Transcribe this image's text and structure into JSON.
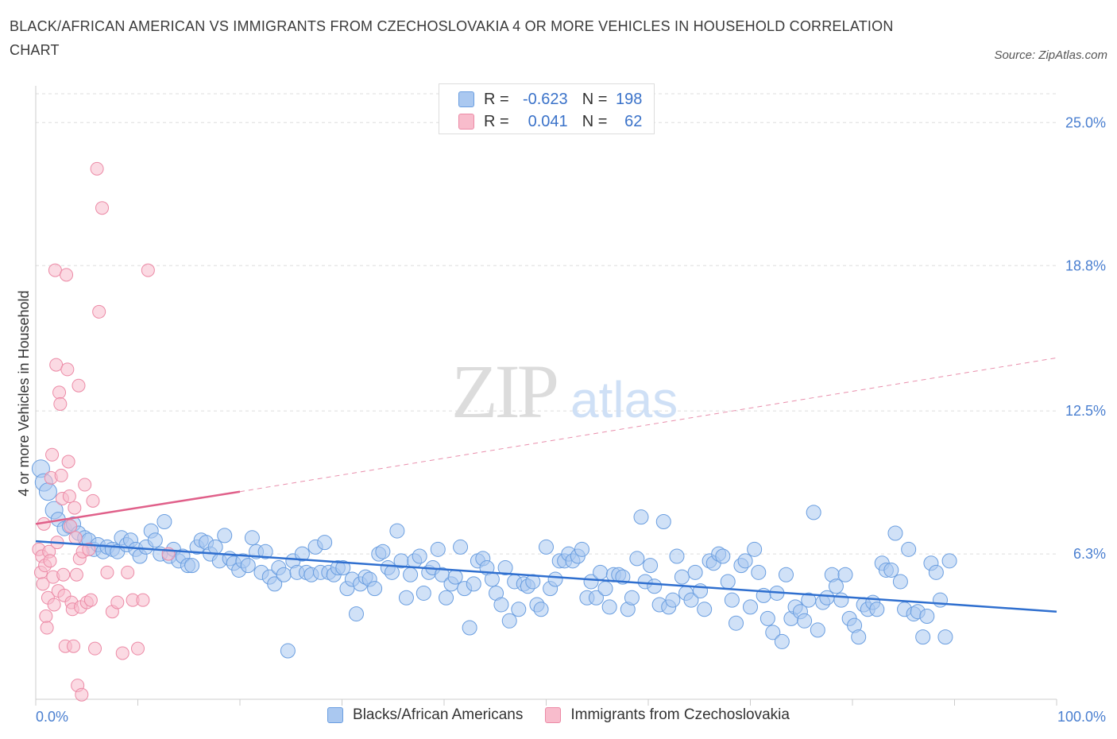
{
  "title": "BLACK/AFRICAN AMERICAN VS IMMIGRANTS FROM CZECHOSLOVAKIA 4 OR MORE VEHICLES IN HOUSEHOLD CORRELATION CHART",
  "source": "Source: ZipAtlas.com",
  "watermark": {
    "zip": "ZIP",
    "atlas": "atlas"
  },
  "legend": {
    "r_label": "R =",
    "n_label": "N =",
    "rows": [
      {
        "r": "-0.623",
        "n": "198"
      },
      {
        "r": "0.041",
        "n": "62"
      }
    ]
  },
  "colors": {
    "blue_fill": "#aac8f0",
    "blue_stroke": "#6a9ee0",
    "blue_line": "#2f6fcf",
    "pink_fill": "#f8bccc",
    "pink_stroke": "#ec8aa6",
    "pink_line": "#e0608a",
    "axis_text": "#4a7fd0",
    "grid": "#dddddd"
  },
  "chart_data": {
    "type": "scatter",
    "title": "BLACK/AFRICAN AMERICAN VS IMMIGRANTS FROM CZECHOSLOVAKIA 4 OR MORE VEHICLES IN HOUSEHOLD CORRELATION CHART",
    "xlabel": "",
    "ylabel": "4 or more Vehicles in Household",
    "xlim": [
      0,
      100
    ],
    "ylim": [
      0,
      26.25
    ],
    "x_tick_labels": [
      "0.0%",
      "100.0%"
    ],
    "y_ticks": [
      6.3,
      12.5,
      18.8,
      25.0
    ],
    "y_tick_labels": [
      "6.3%",
      "12.5%",
      "18.8%",
      "25.0%"
    ],
    "grid": true,
    "legend_position": "top-center",
    "series": [
      {
        "name": "Blacks/African Americans",
        "color": "#aac8f0",
        "trend": {
          "x": [
            0,
            100
          ],
          "y": [
            6.85,
            3.8
          ]
        },
        "points": [
          [
            0.5,
            10.0
          ],
          [
            0.8,
            9.4
          ],
          [
            1.2,
            9.0
          ],
          [
            1.8,
            8.2
          ],
          [
            2.2,
            7.8
          ],
          [
            2.8,
            7.4
          ],
          [
            3.3,
            7.5
          ],
          [
            3.7,
            7.6
          ],
          [
            4.2,
            7.2
          ],
          [
            4.8,
            7.0
          ],
          [
            5.2,
            6.9
          ],
          [
            5.7,
            6.5
          ],
          [
            6.1,
            6.7
          ],
          [
            6.6,
            6.4
          ],
          [
            7.0,
            6.6
          ],
          [
            7.5,
            6.5
          ],
          [
            8.0,
            6.4
          ],
          [
            8.4,
            7.0
          ],
          [
            8.9,
            6.7
          ],
          [
            9.3,
            6.9
          ],
          [
            9.8,
            6.5
          ],
          [
            10.2,
            6.2
          ],
          [
            10.8,
            6.6
          ],
          [
            11.3,
            7.3
          ],
          [
            11.7,
            6.9
          ],
          [
            12.2,
            6.3
          ],
          [
            12.6,
            7.7
          ],
          [
            13.1,
            6.2
          ],
          [
            13.5,
            6.5
          ],
          [
            14.0,
            6.0
          ],
          [
            14.4,
            6.2
          ],
          [
            14.9,
            5.8
          ],
          [
            15.3,
            5.8
          ],
          [
            15.8,
            6.6
          ],
          [
            16.2,
            6.9
          ],
          [
            16.7,
            6.8
          ],
          [
            17.1,
            6.3
          ],
          [
            17.6,
            6.6
          ],
          [
            18.0,
            6.0
          ],
          [
            18.5,
            7.1
          ],
          [
            19.0,
            6.1
          ],
          [
            19.4,
            5.9
          ],
          [
            19.9,
            5.6
          ],
          [
            20.3,
            6.0
          ],
          [
            20.8,
            5.8
          ],
          [
            21.2,
            7.0
          ],
          [
            21.6,
            6.4
          ],
          [
            22.1,
            5.5
          ],
          [
            22.5,
            6.4
          ],
          [
            22.9,
            5.3
          ],
          [
            23.4,
            5.0
          ],
          [
            23.8,
            5.7
          ],
          [
            24.3,
            5.4
          ],
          [
            24.7,
            2.1
          ],
          [
            25.2,
            6.0
          ],
          [
            25.6,
            5.5
          ],
          [
            26.1,
            6.3
          ],
          [
            26.5,
            5.5
          ],
          [
            27.0,
            5.4
          ],
          [
            27.4,
            6.6
          ],
          [
            27.9,
            5.5
          ],
          [
            28.3,
            6.8
          ],
          [
            28.7,
            5.5
          ],
          [
            29.2,
            5.4
          ],
          [
            29.6,
            5.7
          ],
          [
            30.1,
            5.7
          ],
          [
            30.5,
            4.8
          ],
          [
            31.0,
            5.2
          ],
          [
            31.4,
            3.7
          ],
          [
            31.8,
            5.0
          ],
          [
            32.3,
            5.3
          ],
          [
            32.7,
            5.2
          ],
          [
            33.2,
            4.8
          ],
          [
            33.6,
            6.3
          ],
          [
            34.0,
            6.4
          ],
          [
            34.5,
            5.7
          ],
          [
            34.9,
            5.5
          ],
          [
            35.4,
            7.3
          ],
          [
            35.8,
            6.0
          ],
          [
            36.3,
            4.4
          ],
          [
            36.7,
            5.4
          ],
          [
            37.1,
            6.0
          ],
          [
            37.6,
            6.2
          ],
          [
            38.0,
            4.6
          ],
          [
            38.5,
            5.5
          ],
          [
            38.9,
            5.7
          ],
          [
            39.4,
            6.5
          ],
          [
            39.8,
            5.4
          ],
          [
            40.2,
            4.4
          ],
          [
            40.7,
            5.0
          ],
          [
            41.1,
            5.3
          ],
          [
            41.6,
            6.6
          ],
          [
            42.0,
            4.8
          ],
          [
            42.5,
            3.1
          ],
          [
            42.9,
            5.0
          ],
          [
            43.3,
            6.0
          ],
          [
            43.8,
            6.1
          ],
          [
            44.2,
            5.7
          ],
          [
            44.7,
            5.2
          ],
          [
            45.1,
            4.6
          ],
          [
            45.6,
            4.1
          ],
          [
            46.0,
            5.7
          ],
          [
            46.4,
            3.4
          ],
          [
            46.9,
            5.1
          ],
          [
            47.3,
            3.9
          ],
          [
            47.8,
            5.0
          ],
          [
            48.2,
            4.9
          ],
          [
            48.7,
            5.1
          ],
          [
            49.1,
            4.1
          ],
          [
            49.5,
            3.9
          ],
          [
            50.0,
            6.6
          ],
          [
            50.4,
            4.8
          ],
          [
            50.9,
            5.2
          ],
          [
            51.3,
            6.0
          ],
          [
            51.8,
            6.0
          ],
          [
            52.2,
            6.3
          ],
          [
            52.6,
            6.0
          ],
          [
            53.1,
            6.2
          ],
          [
            53.5,
            6.5
          ],
          [
            54.0,
            4.4
          ],
          [
            54.4,
            5.1
          ],
          [
            54.9,
            4.4
          ],
          [
            55.3,
            5.5
          ],
          [
            55.8,
            4.8
          ],
          [
            56.2,
            4.0
          ],
          [
            56.6,
            5.4
          ],
          [
            57.1,
            5.4
          ],
          [
            57.5,
            5.3
          ],
          [
            58.0,
            3.9
          ],
          [
            58.4,
            4.4
          ],
          [
            58.9,
            6.1
          ],
          [
            59.3,
            7.9
          ],
          [
            59.7,
            5.1
          ],
          [
            60.2,
            5.8
          ],
          [
            60.6,
            4.9
          ],
          [
            61.1,
            4.1
          ],
          [
            61.5,
            7.7
          ],
          [
            62.0,
            4.0
          ],
          [
            62.4,
            4.3
          ],
          [
            62.8,
            6.2
          ],
          [
            63.3,
            5.3
          ],
          [
            63.7,
            4.6
          ],
          [
            64.2,
            4.3
          ],
          [
            64.6,
            5.5
          ],
          [
            65.1,
            4.7
          ],
          [
            65.5,
            3.9
          ],
          [
            66.0,
            6.0
          ],
          [
            66.4,
            5.9
          ],
          [
            66.9,
            6.3
          ],
          [
            67.3,
            6.2
          ],
          [
            67.8,
            5.1
          ],
          [
            68.2,
            4.3
          ],
          [
            68.6,
            3.3
          ],
          [
            69.1,
            5.8
          ],
          [
            69.5,
            6.0
          ],
          [
            70.0,
            4.0
          ],
          [
            70.4,
            6.5
          ],
          [
            70.8,
            5.5
          ],
          [
            71.3,
            4.5
          ],
          [
            71.7,
            3.5
          ],
          [
            72.2,
            2.9
          ],
          [
            72.6,
            4.6
          ],
          [
            73.1,
            2.5
          ],
          [
            73.5,
            5.4
          ],
          [
            74.0,
            3.5
          ],
          [
            74.4,
            4.0
          ],
          [
            74.9,
            3.8
          ],
          [
            75.3,
            3.4
          ],
          [
            75.7,
            4.3
          ],
          [
            76.2,
            8.1
          ],
          [
            76.6,
            3.0
          ],
          [
            77.1,
            4.2
          ],
          [
            77.5,
            4.4
          ],
          [
            78.0,
            5.4
          ],
          [
            78.4,
            4.9
          ],
          [
            78.9,
            4.3
          ],
          [
            79.3,
            5.4
          ],
          [
            79.7,
            3.5
          ],
          [
            80.2,
            3.2
          ],
          [
            80.6,
            2.7
          ],
          [
            81.1,
            4.1
          ],
          [
            81.5,
            3.9
          ],
          [
            82.0,
            4.2
          ],
          [
            82.4,
            3.9
          ],
          [
            82.9,
            5.9
          ],
          [
            83.3,
            5.6
          ],
          [
            83.8,
            5.6
          ],
          [
            84.2,
            7.2
          ],
          [
            84.7,
            5.1
          ],
          [
            85.1,
            3.9
          ],
          [
            85.5,
            6.5
          ],
          [
            86.0,
            3.7
          ],
          [
            86.4,
            3.8
          ],
          [
            86.9,
            2.7
          ],
          [
            87.3,
            3.6
          ],
          [
            87.7,
            5.9
          ],
          [
            88.2,
            5.5
          ],
          [
            88.6,
            4.3
          ],
          [
            89.1,
            2.7
          ],
          [
            89.5,
            6.0
          ]
        ]
      },
      {
        "name": "Immigrants from Czechoslovakia",
        "color": "#f8bccc",
        "trend": {
          "x": [
            0,
            20
          ],
          "y": [
            7.6,
            9.0
          ],
          "dashed_to": {
            "x": 100,
            "y": 14.8
          }
        },
        "points": [
          [
            0.3,
            6.5
          ],
          [
            0.5,
            5.5
          ],
          [
            0.6,
            6.2
          ],
          [
            0.7,
            5.0
          ],
          [
            0.8,
            7.6
          ],
          [
            0.9,
            5.8
          ],
          [
            1.0,
            3.6
          ],
          [
            1.1,
            3.1
          ],
          [
            1.2,
            4.4
          ],
          [
            1.3,
            6.4
          ],
          [
            1.4,
            6.0
          ],
          [
            1.5,
            9.6
          ],
          [
            1.6,
            10.6
          ],
          [
            1.7,
            5.3
          ],
          [
            1.8,
            4.1
          ],
          [
            1.9,
            18.6
          ],
          [
            2.0,
            14.5
          ],
          [
            2.1,
            6.8
          ],
          [
            2.2,
            4.7
          ],
          [
            2.3,
            13.3
          ],
          [
            2.4,
            12.8
          ],
          [
            2.5,
            9.7
          ],
          [
            2.6,
            8.7
          ],
          [
            2.7,
            5.4
          ],
          [
            2.8,
            4.5
          ],
          [
            2.9,
            2.3
          ],
          [
            3.0,
            18.4
          ],
          [
            3.1,
            14.3
          ],
          [
            3.2,
            10.3
          ],
          [
            3.3,
            8.8
          ],
          [
            3.4,
            7.5
          ],
          [
            3.5,
            4.2
          ],
          [
            3.6,
            3.9
          ],
          [
            3.7,
            2.3
          ],
          [
            3.8,
            8.3
          ],
          [
            3.9,
            7.0
          ],
          [
            4.0,
            5.4
          ],
          [
            4.1,
            0.6
          ],
          [
            4.2,
            13.6
          ],
          [
            4.3,
            6.1
          ],
          [
            4.4,
            4.0
          ],
          [
            4.5,
            0.2
          ],
          [
            4.6,
            6.4
          ],
          [
            4.8,
            9.3
          ],
          [
            5.0,
            4.2
          ],
          [
            5.2,
            6.5
          ],
          [
            5.4,
            4.3
          ],
          [
            5.6,
            8.6
          ],
          [
            5.8,
            2.2
          ],
          [
            6.0,
            23.0
          ],
          [
            6.2,
            16.8
          ],
          [
            6.5,
            21.3
          ],
          [
            7.0,
            5.5
          ],
          [
            7.5,
            3.8
          ],
          [
            8.0,
            4.2
          ],
          [
            8.5,
            2.0
          ],
          [
            9.0,
            5.5
          ],
          [
            9.5,
            4.3
          ],
          [
            10.0,
            2.2
          ],
          [
            10.5,
            4.3
          ],
          [
            11.0,
            18.6
          ],
          [
            13.0,
            6.3
          ]
        ]
      }
    ]
  },
  "bottom_legend": [
    "Blacks/African Americans",
    "Immigrants from Czechoslovakia"
  ]
}
